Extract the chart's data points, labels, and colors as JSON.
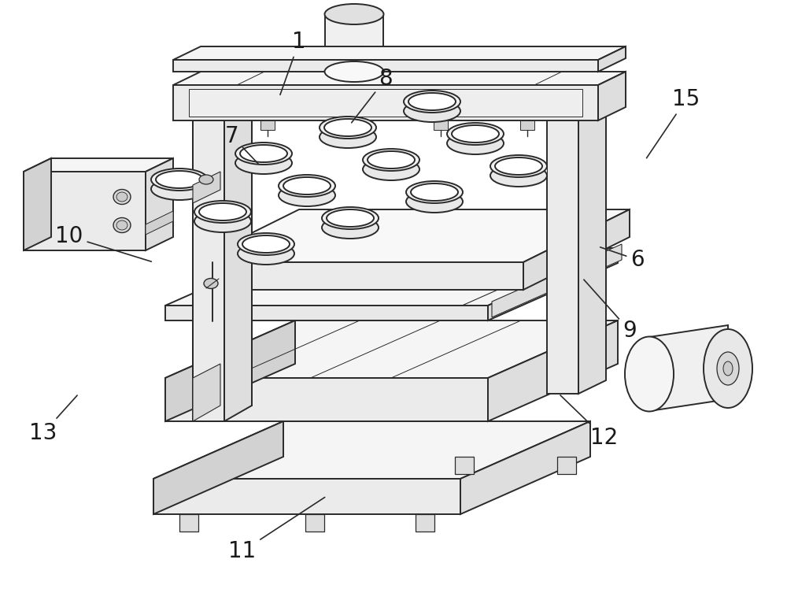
{
  "background_color": "#ffffff",
  "line_color": "#2a2a2a",
  "line_width": 1.4,
  "label_fontsize": 20,
  "labels_data": [
    [
      "1",
      380,
      695,
      355,
      625
    ],
    [
      "6",
      810,
      418,
      760,
      435
    ],
    [
      "7",
      295,
      575,
      330,
      538
    ],
    [
      "8",
      490,
      648,
      445,
      590
    ],
    [
      "9",
      800,
      328,
      740,
      395
    ],
    [
      "10",
      88,
      448,
      195,
      415
    ],
    [
      "11",
      308,
      48,
      415,
      118
    ],
    [
      "12",
      768,
      192,
      710,
      248
    ],
    [
      "13",
      55,
      198,
      100,
      248
    ],
    [
      "15",
      872,
      622,
      820,
      545
    ]
  ]
}
